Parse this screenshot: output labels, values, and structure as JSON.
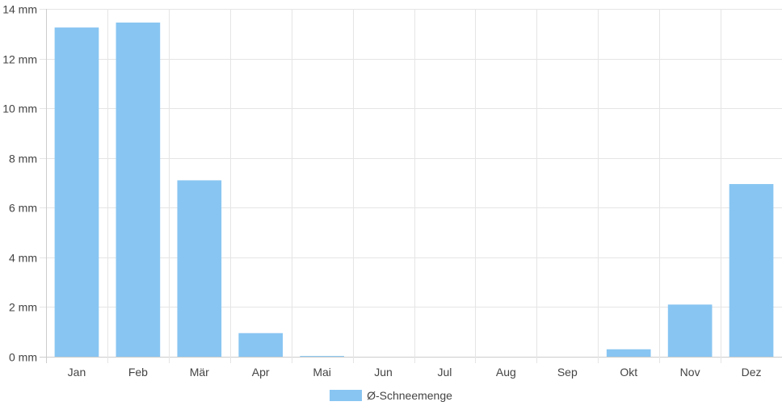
{
  "chart_data": {
    "type": "bar",
    "categories": [
      "Jan",
      "Feb",
      "Mär",
      "Apr",
      "Mai",
      "Jun",
      "Jul",
      "Aug",
      "Sep",
      "Okt",
      "Nov",
      "Dez"
    ],
    "series": [
      {
        "name": "Ø-Schneemenge",
        "values": [
          13.25,
          13.45,
          7.1,
          0.95,
          0.03,
          0,
          0,
          0,
          0,
          0.3,
          2.1,
          6.95
        ]
      }
    ],
    "y_ticks": [
      "0 mm",
      "2 mm",
      "4 mm",
      "6 mm",
      "8 mm",
      "10 mm",
      "12 mm",
      "14 mm"
    ],
    "ylim": [
      0,
      14
    ],
    "y_unit": "mm",
    "grid": true,
    "legend_position": "bottom",
    "colors": {
      "bar": "#88c5f2",
      "grid": "#e5e5e5",
      "axis": "#cccccc",
      "text": "#444444"
    }
  }
}
